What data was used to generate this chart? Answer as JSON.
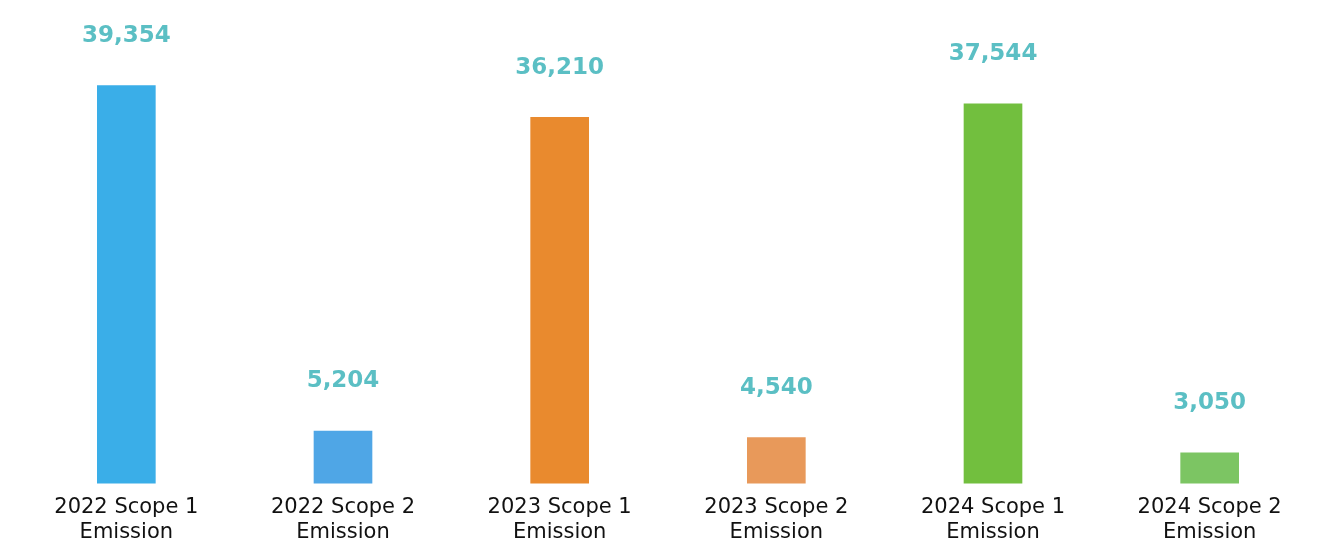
{
  "chart_data": {
    "type": "bar",
    "categories": [
      "2022 Scope 1 Emission",
      "2022 Scope 2 Emission",
      "2023 Scope 1 Emission",
      "2023 Scope 2 Emission",
      "2024 Scope 1 Emission",
      "2024 Scope 2 Emission"
    ],
    "values": [
      39354,
      5204,
      36210,
      4540,
      37544,
      3050
    ],
    "colors": [
      "#3aaee8",
      "#4fa6e6",
      "#e98a2e",
      "#e8995a",
      "#72bf3e",
      "#7cc563"
    ],
    "value_labels": [
      "39,354",
      "5,204",
      "36,210",
      "4,540",
      "37,544",
      "3,050"
    ]
  }
}
